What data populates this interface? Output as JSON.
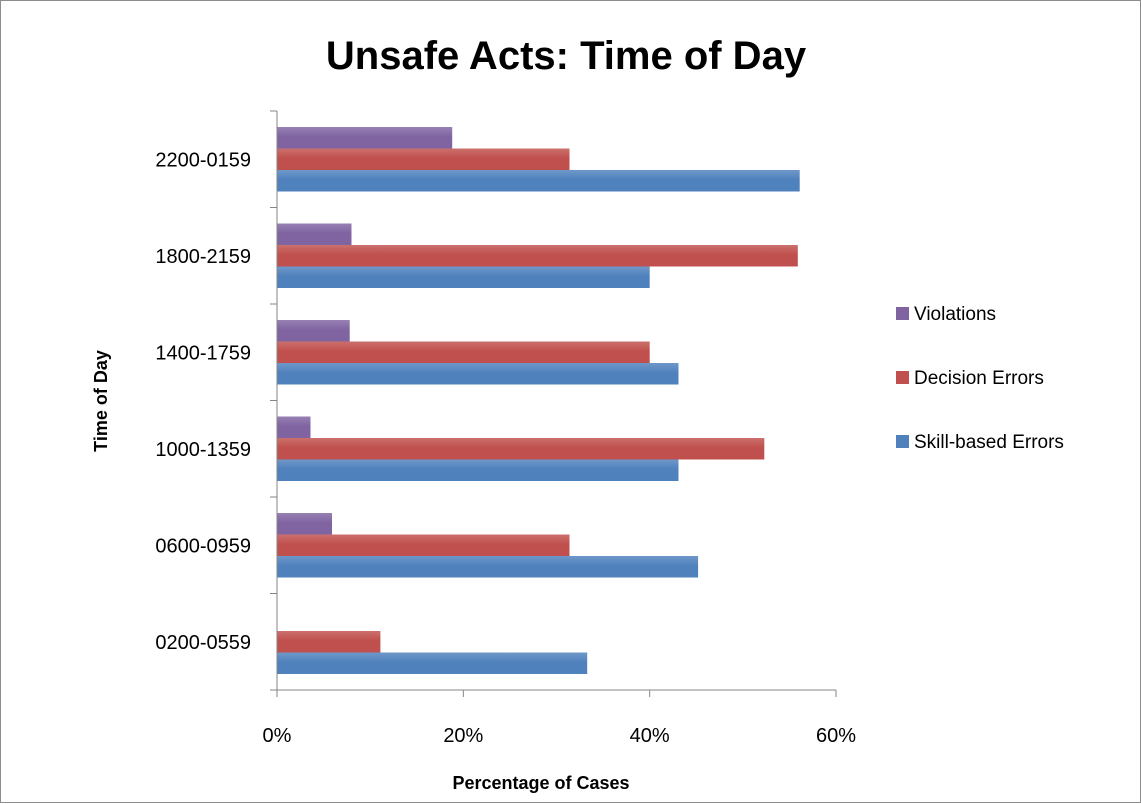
{
  "chart_data": {
    "type": "bar",
    "orientation": "horizontal",
    "title": "Unsafe Acts: Time of Day",
    "xlabel": "Percentage of Cases",
    "ylabel": "Time of Day",
    "categories": [
      "0200-0559",
      "0600-0959",
      "1000-1359",
      "1400-1759",
      "1800-2159",
      "2200-0159"
    ],
    "series": [
      {
        "name": "Skill-based Errors",
        "color": "#4F81BD",
        "values": [
          33.3,
          45.2,
          43.1,
          43.1,
          40.0,
          56.1
        ]
      },
      {
        "name": "Decision Errors",
        "color": "#C0504D",
        "values": [
          11.1,
          31.4,
          52.3,
          40.0,
          55.9,
          31.4
        ]
      },
      {
        "name": "Violations",
        "color": "#8064A2",
        "values": [
          0,
          5.9,
          3.6,
          7.8,
          8.0,
          18.8
        ]
      }
    ],
    "xlim": [
      0,
      60
    ],
    "xticks": [
      "0%",
      "20%",
      "40%",
      "60%"
    ],
    "grid": false,
    "legend": {
      "placement": "right",
      "order": [
        "Violations",
        "Decision Errors",
        "Skill-based Errors"
      ]
    }
  }
}
